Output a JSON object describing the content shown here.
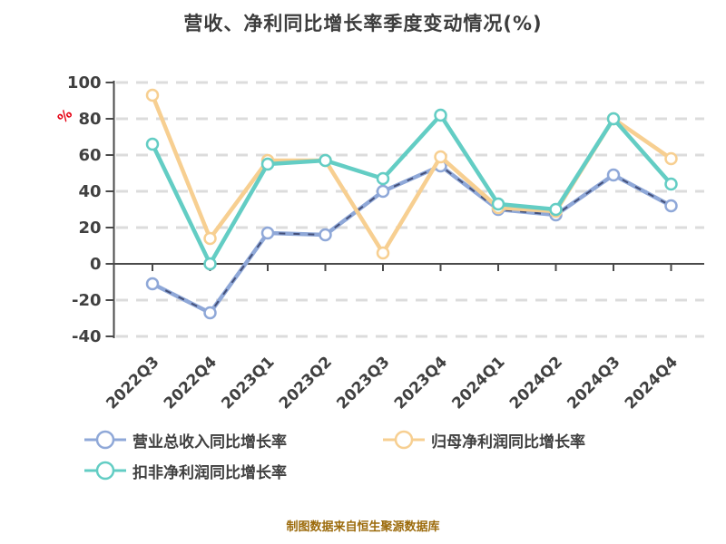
{
  "title": {
    "text": "营收、净利同比增长率季度变动情况(%)",
    "color": "#3c3c3c"
  },
  "footer": {
    "text": "制图数据来自恒生聚源数据库",
    "color": "#9c6b0c"
  },
  "axis": {
    "y_unit_label": "%",
    "y_unit_color": "#e60012",
    "yticks": [
      100,
      80,
      60,
      40,
      20,
      0,
      -20,
      -40
    ],
    "tick_text_color": "#404040",
    "axis_line_color": "#4a4a4a",
    "grid_color": "#dcdcdc"
  },
  "chart_data": {
    "type": "line",
    "title": "营收、净利同比增长率季度变动情况(%)",
    "categories": [
      "2022Q3",
      "2022Q4",
      "2023Q1",
      "2023Q2",
      "2023Q3",
      "2023Q4",
      "2024Q1",
      "2024Q2",
      "2024Q3",
      "2024Q4"
    ],
    "series": [
      {
        "name": "营业总收入同比增长率",
        "color": "#8fa8d8",
        "line_style": "dashed",
        "dash_overlay_color": "#44507a",
        "values": [
          -11,
          -27,
          17,
          16,
          40,
          54,
          30,
          27,
          49,
          32
        ]
      },
      {
        "name": "归母净利润同比增长率",
        "color": "#f7cf91",
        "line_style": "solid",
        "values": [
          93,
          14,
          57,
          57,
          6,
          59,
          31,
          29,
          80,
          58
        ]
      },
      {
        "name": "扣非净利润同比增长率",
        "color": "#63cdc4",
        "line_style": "solid",
        "values": [
          66,
          0,
          55,
          57,
          47,
          82,
          33,
          30,
          80,
          44
        ]
      }
    ],
    "ylim": [
      -40,
      100
    ],
    "ytick_step": 20,
    "ylabel": "%",
    "xlabel": "",
    "grid": "horizontal-dashed",
    "marker": "circle-white-fill",
    "legend_position": "bottom-left"
  }
}
